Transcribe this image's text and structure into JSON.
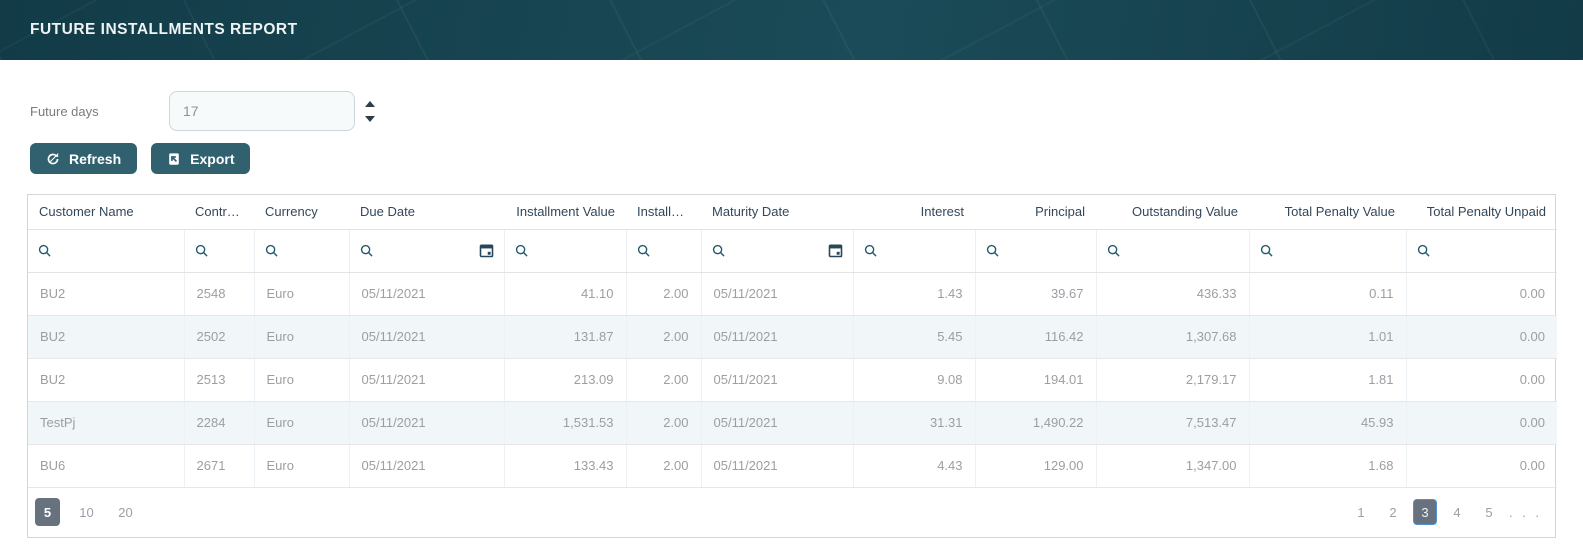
{
  "header": {
    "title": "FUTURE INSTALLMENTS REPORT"
  },
  "controls": {
    "future_days_label": "Future days",
    "future_days_value": "17",
    "refresh_label": "Refresh",
    "export_label": "Export",
    "refresh_icon": "refresh-icon",
    "export_icon": "export-icon",
    "stepper_icons": [
      "stepper-up-icon",
      "stepper-down-icon"
    ]
  },
  "theme": {
    "header_bg_dark": "#123b47",
    "header_bg_light": "#1b4b58",
    "button_bg": "#31616f",
    "row_alt": "#f1f6f8",
    "pager_selected_bg": "#67727e",
    "pager_selected_border": "#4f92cd",
    "filter_icon_color": "#1f5b6e",
    "calendar_icon_color": "#28475a",
    "header_text_color": "#33475b",
    "cell_text_color": "#9b9fa3"
  },
  "table": {
    "columns": [
      {
        "label": "Customer Name",
        "slug": "customer-name",
        "align": "left",
        "filter_icons": [
          "search-icon"
        ]
      },
      {
        "label": "Contrac…",
        "slug": "contract",
        "align": "left",
        "filter_icons": [
          "search-icon"
        ]
      },
      {
        "label": "Currency",
        "slug": "currency",
        "align": "left",
        "filter_icons": [
          "search-icon"
        ]
      },
      {
        "label": "Due Date",
        "slug": "due-date",
        "align": "left",
        "filter_icons": [
          "search-icon",
          "calendar-icon"
        ]
      },
      {
        "label": "Installment Value",
        "slug": "installment-value",
        "align": "right",
        "header_align": "right",
        "filter_icons": [
          "search-icon"
        ]
      },
      {
        "label": "Installm…",
        "slug": "installments",
        "align": "right",
        "header_align": "left",
        "filter_icons": [
          "search-icon"
        ]
      },
      {
        "label": "Maturity Date",
        "slug": "maturity-date",
        "align": "left",
        "filter_icons": [
          "search-icon",
          "calendar-icon"
        ]
      },
      {
        "label": "Interest",
        "slug": "interest",
        "align": "right",
        "header_align": "right",
        "filter_icons": [
          "search-icon"
        ]
      },
      {
        "label": "Principal",
        "slug": "principal",
        "align": "right",
        "header_align": "right",
        "filter_icons": [
          "search-icon"
        ]
      },
      {
        "label": "Outstanding Value",
        "slug": "outstanding-value",
        "align": "right",
        "header_align": "right",
        "filter_icons": [
          "search-icon"
        ]
      },
      {
        "label": "Total Penalty Value",
        "slug": "total-penalty-value",
        "align": "right",
        "header_align": "right",
        "filter_icons": [
          "search-icon"
        ]
      },
      {
        "label": "Total Penalty Unpaid",
        "slug": "total-penalty-unpaid",
        "align": "right",
        "header_align": "right",
        "filter_icons": [
          "search-icon"
        ]
      }
    ],
    "rows": [
      [
        "BU2",
        "2548",
        "Euro",
        "05/11/2021",
        "41.10",
        "2.00",
        "05/11/2021",
        "1.43",
        "39.67",
        "436.33",
        "0.11",
        "0.00"
      ],
      [
        "BU2",
        "2502",
        "Euro",
        "05/11/2021",
        "131.87",
        "2.00",
        "05/11/2021",
        "5.45",
        "116.42",
        "1,307.68",
        "1.01",
        "0.00"
      ],
      [
        "BU2",
        "2513",
        "Euro",
        "05/11/2021",
        "213.09",
        "2.00",
        "05/11/2021",
        "9.08",
        "194.01",
        "2,179.17",
        "1.81",
        "0.00"
      ],
      [
        "TestPj",
        "2284",
        "Euro",
        "05/11/2021",
        "1,531.53",
        "2.00",
        "05/11/2021",
        "31.31",
        "1,490.22",
        "7,513.47",
        "45.93",
        "0.00"
      ],
      [
        "BU6",
        "2671",
        "Euro",
        "05/11/2021",
        "133.43",
        "2.00",
        "05/11/2021",
        "4.43",
        "129.00",
        "1,347.00",
        "1.68",
        "0.00"
      ]
    ]
  },
  "pagination": {
    "page_sizes": [
      "5",
      "10",
      "20"
    ],
    "selected_page_size": "5",
    "pages": [
      "1",
      "2",
      "3",
      "4",
      "5"
    ],
    "selected_page": "3",
    "ellipsis": ". . ."
  }
}
